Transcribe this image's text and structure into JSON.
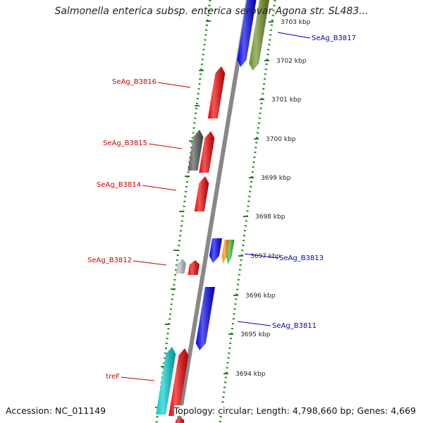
{
  "title": "Salmonella enterica subsp. enterica serovar Agona str. SL483...",
  "footer": {
    "accession": "Accession: NC_011149",
    "stats": "Topology: circular; Length: 4,798,660 bp; Genes: 4,669"
  },
  "colors": {
    "forward_label": "#cc0000",
    "reverse_label": "#0000bb",
    "tick_green": "#228822",
    "backbone": "#888888"
  },
  "kbp_ticks": [
    {
      "label": "3703 kbp"
    },
    {
      "label": "3702 kbp"
    },
    {
      "label": "3701 kbp"
    },
    {
      "label": "3700 kbp"
    },
    {
      "label": "3699 kbp"
    },
    {
      "label": "3698 kbp"
    },
    {
      "label": "3697 kbp"
    },
    {
      "label": "3696 kbp"
    },
    {
      "label": "3695 kbp"
    },
    {
      "label": "3694 kbp"
    }
  ],
  "gene_labels": [
    {
      "text": "SeAg_B3817",
      "strand": "reverse"
    },
    {
      "text": "SeAg_B3816",
      "strand": "forward"
    },
    {
      "text": "SeAg_B3815",
      "strand": "forward"
    },
    {
      "text": "SeAg_B3814",
      "strand": "forward"
    },
    {
      "text": "SeAg_B3813",
      "strand": "reverse"
    },
    {
      "text": "SeAg_B3812",
      "strand": "forward"
    },
    {
      "text": "SeAg_B3811",
      "strand": "reverse"
    },
    {
      "text": "treF",
      "strand": "forward"
    }
  ],
  "features": [
    {
      "name": "blue-cds-top",
      "color": "#0000ee",
      "strand": "reverse"
    },
    {
      "name": "olive-cds-top",
      "color": "#6b8e23",
      "strand": "reverse"
    },
    {
      "name": "red-cds-3816",
      "color": "#ee0000",
      "strand": "forward"
    },
    {
      "name": "gray-cds-3815",
      "color": "#555555",
      "strand": "forward"
    },
    {
      "name": "red-cds-3815",
      "color": "#ee0000",
      "strand": "forward"
    },
    {
      "name": "red-cds-3814",
      "color": "#ee0000",
      "strand": "forward"
    },
    {
      "name": "blue-cds-3813",
      "color": "#0000ee",
      "strand": "reverse"
    },
    {
      "name": "orange-feature-3813",
      "color": "#ff8c00",
      "strand": "reverse"
    },
    {
      "name": "green-feature-3813",
      "color": "#33bb33",
      "strand": "reverse"
    },
    {
      "name": "lightgray-feature-3812",
      "color": "#bbbbbb",
      "strand": "forward"
    },
    {
      "name": "red-cds-3812",
      "color": "#ee0000",
      "strand": "forward"
    },
    {
      "name": "blue-cds-3811",
      "color": "#0000ee",
      "strand": "reverse"
    },
    {
      "name": "cyan-cds-tref",
      "color": "#00cccc",
      "strand": "forward"
    },
    {
      "name": "red-cds-tref",
      "color": "#ee0000",
      "strand": "forward"
    },
    {
      "name": "red-cds-bottom",
      "color": "#ee0000",
      "strand": "forward"
    }
  ]
}
